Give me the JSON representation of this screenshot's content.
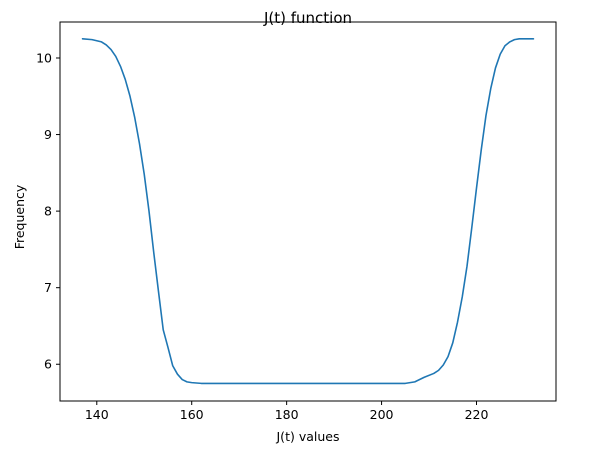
{
  "chart_data": {
    "type": "line",
    "title": "J(t) function",
    "xlabel": "J(t) values",
    "ylabel": "Frequency",
    "xlim": [
      132.25,
      236.75
    ],
    "ylim": [
      5.52,
      10.47
    ],
    "xticks": [
      140,
      160,
      180,
      200,
      220
    ],
    "yticks": [
      6,
      7,
      8,
      9,
      10
    ],
    "grid": false,
    "series": [
      {
        "color": "#1f77b4",
        "x": [
          137,
          139,
          141,
          142,
          143,
          144,
          145,
          146,
          147,
          148,
          149,
          150,
          151,
          152,
          153,
          154,
          155,
          156,
          157,
          158,
          159,
          160,
          162,
          165,
          170,
          180,
          190,
          200,
          205,
          207,
          209,
          211,
          212,
          213,
          214,
          215,
          216,
          217,
          218,
          219,
          220,
          221,
          222,
          223,
          224,
          225,
          226,
          227,
          228,
          229,
          230,
          232
        ],
        "y": [
          10.25,
          10.24,
          10.21,
          10.17,
          10.11,
          10.02,
          9.89,
          9.72,
          9.5,
          9.22,
          8.88,
          8.48,
          8.0,
          7.46,
          6.95,
          6.45,
          6.22,
          5.98,
          5.87,
          5.8,
          5.77,
          5.76,
          5.75,
          5.75,
          5.75,
          5.75,
          5.75,
          5.75,
          5.75,
          5.77,
          5.83,
          5.88,
          5.92,
          5.99,
          6.1,
          6.28,
          6.55,
          6.88,
          7.28,
          7.78,
          8.3,
          8.8,
          9.25,
          9.6,
          9.87,
          10.05,
          10.16,
          10.21,
          10.24,
          10.25,
          10.25,
          10.25
        ]
      }
    ]
  }
}
